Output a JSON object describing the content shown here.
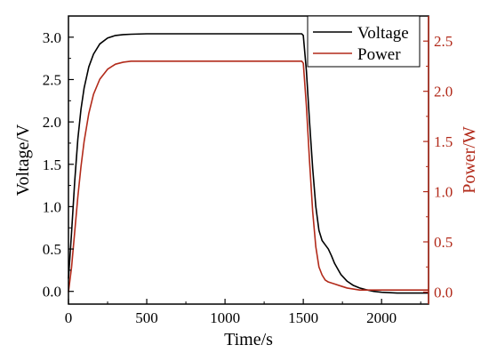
{
  "chart_data": {
    "type": "line",
    "title": "",
    "xlabel": "Time/s",
    "ylabel": "Voltage/V",
    "y2label": "Power/W",
    "xlim": [
      0,
      2300
    ],
    "ylim": [
      -0.15,
      3.25
    ],
    "y2lim": [
      -0.12,
      2.75
    ],
    "xticks": [
      0,
      500,
      1000,
      1500,
      2000
    ],
    "yticks": [
      0.0,
      0.5,
      1.0,
      1.5,
      2.0,
      2.5,
      3.0
    ],
    "y2ticks": [
      0.0,
      0.5,
      1.0,
      1.5,
      2.0,
      2.5
    ],
    "legend": "top-right",
    "grid": false,
    "colors": {
      "voltage": "#000000",
      "power": "#b22a1a",
      "axis": "#000000"
    },
    "series": [
      {
        "name": "Voltage",
        "axis": "left",
        "x": [
          0,
          20,
          40,
          60,
          80,
          100,
          130,
          160,
          200,
          250,
          300,
          350,
          400,
          500,
          600,
          800,
          1000,
          1200,
          1400,
          1490,
          1500,
          1520,
          1540,
          1560,
          1580,
          1600,
          1620,
          1640,
          1660,
          1680,
          1700,
          1740,
          1780,
          1820,
          1860,
          1900,
          1950,
          2000,
          2100,
          2200,
          2300
        ],
        "values": [
          0.15,
          0.7,
          1.3,
          1.8,
          2.15,
          2.4,
          2.65,
          2.8,
          2.92,
          2.99,
          3.02,
          3.03,
          3.035,
          3.04,
          3.04,
          3.04,
          3.04,
          3.04,
          3.04,
          3.04,
          3.02,
          2.6,
          2.0,
          1.45,
          1.0,
          0.72,
          0.6,
          0.55,
          0.5,
          0.42,
          0.33,
          0.2,
          0.12,
          0.07,
          0.04,
          0.02,
          0.0,
          -0.01,
          -0.02,
          -0.02,
          -0.02
        ]
      },
      {
        "name": "Power",
        "axis": "right",
        "x": [
          0,
          20,
          40,
          60,
          80,
          100,
          130,
          160,
          200,
          250,
          300,
          350,
          400,
          500,
          600,
          800,
          1000,
          1200,
          1400,
          1490,
          1500,
          1520,
          1540,
          1560,
          1580,
          1600,
          1620,
          1640,
          1660,
          1680,
          1700,
          1740,
          1780,
          1820,
          1860,
          1900,
          1950,
          2000,
          2100,
          2200,
          2300
        ],
        "values": [
          0.0,
          0.25,
          0.6,
          0.95,
          1.25,
          1.5,
          1.78,
          1.97,
          2.12,
          2.22,
          2.27,
          2.29,
          2.3,
          2.3,
          2.3,
          2.3,
          2.3,
          2.3,
          2.3,
          2.3,
          2.28,
          1.85,
          1.3,
          0.8,
          0.45,
          0.25,
          0.17,
          0.12,
          0.1,
          0.09,
          0.08,
          0.06,
          0.04,
          0.03,
          0.02,
          0.02,
          0.02,
          0.02,
          0.02,
          0.02,
          0.02
        ]
      }
    ]
  }
}
